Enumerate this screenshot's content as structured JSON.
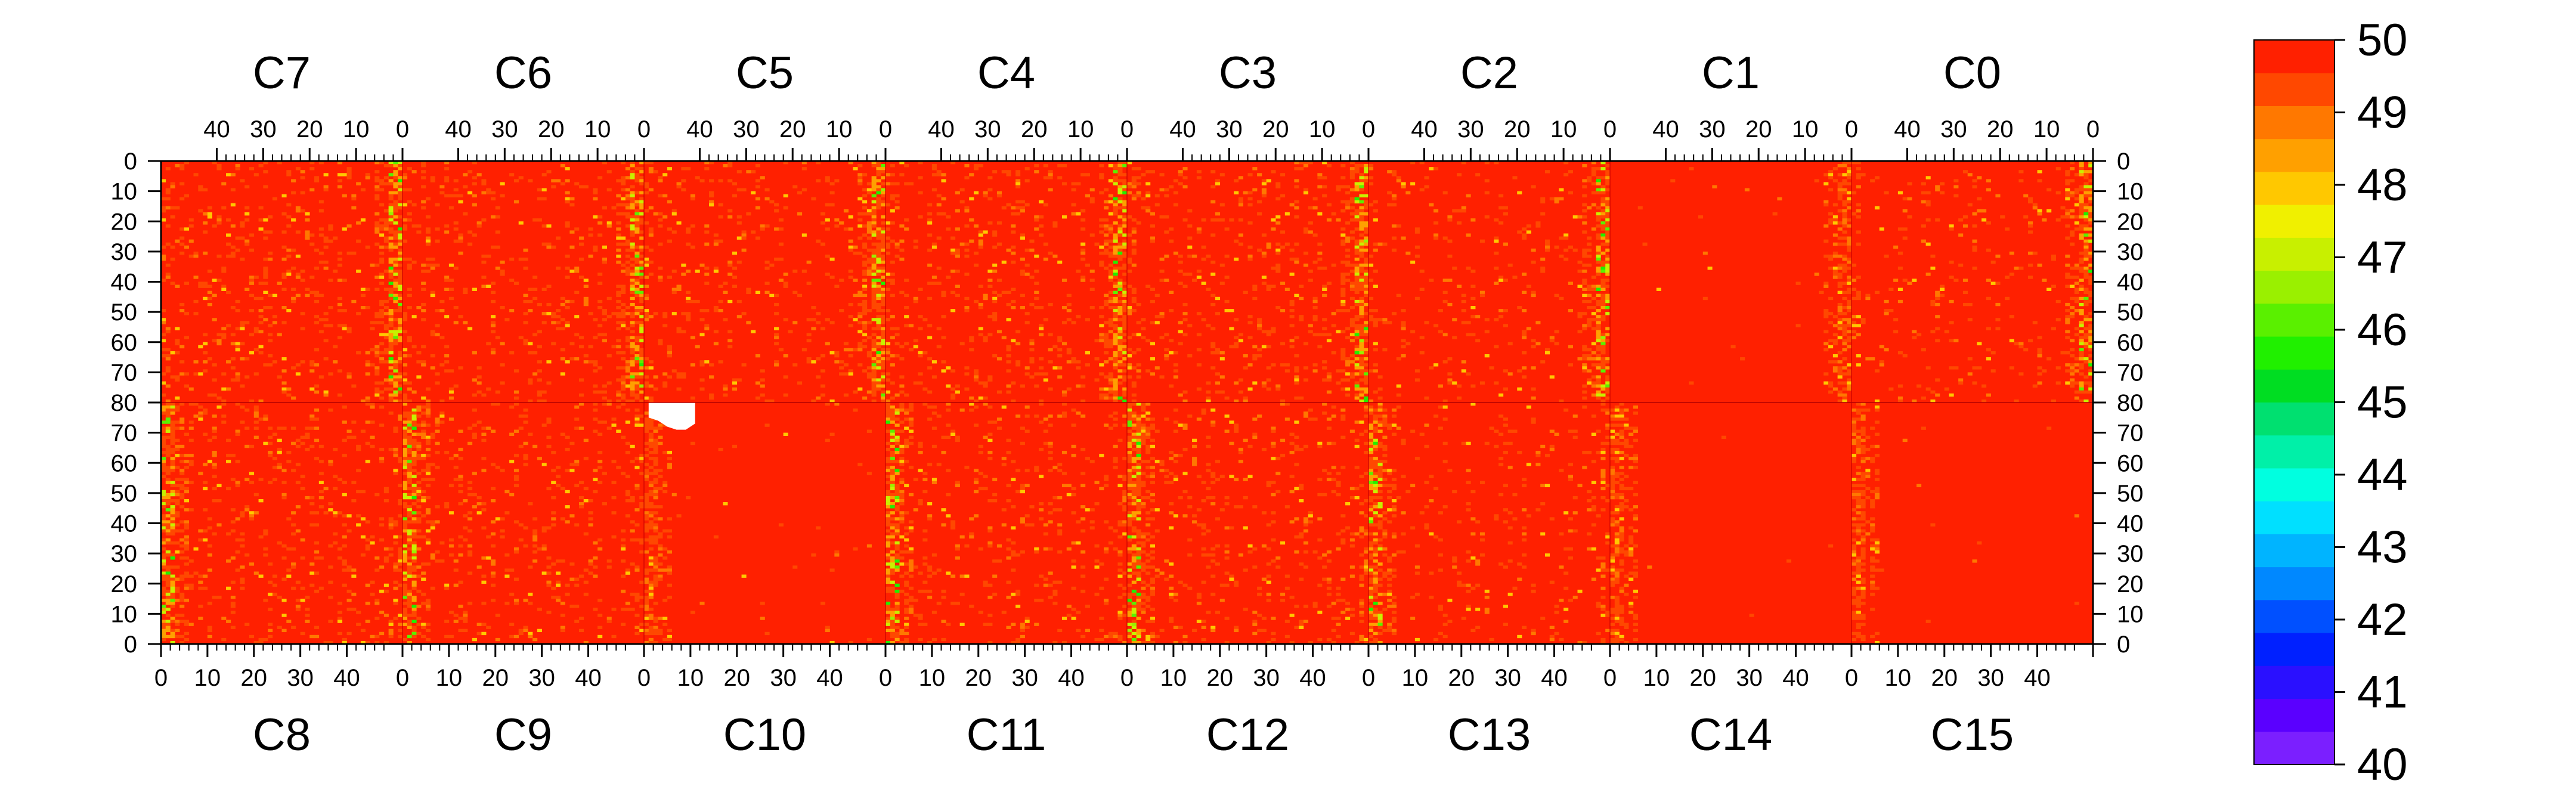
{
  "chart_data": {
    "type": "heatmap",
    "title": "",
    "top_row_chips": [
      "C7",
      "C6",
      "C5",
      "C4",
      "C3",
      "C2",
      "C1",
      "C0"
    ],
    "bottom_row_chips": [
      "C8",
      "C9",
      "C10",
      "C11",
      "C12",
      "C13",
      "C14",
      "C15"
    ],
    "columns_per_chip": 52,
    "rows_per_half": 80,
    "x_ticks_top": [
      "40",
      "30",
      "20",
      "10",
      "0"
    ],
    "x_ticks_bottom": [
      "0",
      "10",
      "20",
      "30",
      "40"
    ],
    "y_ticks_top_half": [
      "0",
      "10",
      "20",
      "30",
      "40",
      "50",
      "60",
      "70",
      "80"
    ],
    "y_ticks_bottom_half": [
      "70",
      "60",
      "50",
      "40",
      "30",
      "20",
      "10",
      "0"
    ],
    "colorbar": {
      "zmin": 40,
      "zmax": 50,
      "labels": [
        "50",
        "49",
        "48",
        "47",
        "46",
        "45",
        "44",
        "43",
        "42",
        "41",
        "40"
      ],
      "colors": [
        "#7b1fff",
        "#5a00ff",
        "#2a10ff",
        "#0020ff",
        "#0050ff",
        "#0088ff",
        "#00b4ff",
        "#00e0ff",
        "#00ffe0",
        "#00f0a8",
        "#00e070",
        "#00dd22",
        "#20f000",
        "#5af000",
        "#9af000",
        "#c8f000",
        "#f0f000",
        "#ffc800",
        "#ffa000",
        "#ff7800",
        "#ff4800",
        "#ff2000"
      ]
    },
    "cell_value_summary": {
      "background_value": 50,
      "typical_noise_range": [
        47,
        50
      ],
      "edge_columns_noisier": true,
      "masked_region": "white block near chip C9/C10 boundary, upper rows of bottom half"
    }
  }
}
